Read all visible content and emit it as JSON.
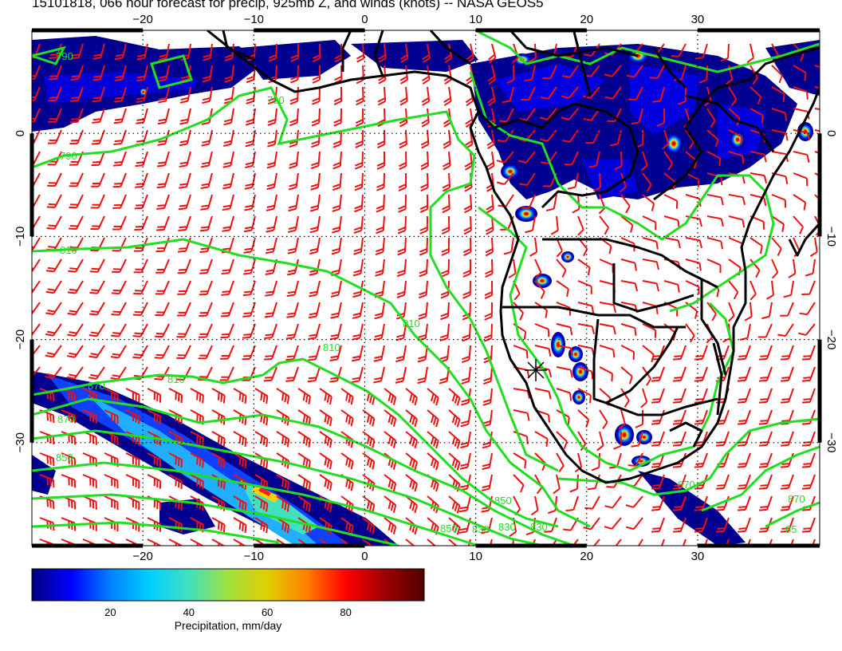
{
  "title": "15101818, 066 hour forecast for precip, 925mb Z, and winds (knots) -- NASA GEOS5",
  "map": {
    "lon_range": [
      -30,
      41
    ],
    "lat_range": [
      -40,
      10
    ],
    "lon_ticks": [
      -20,
      -10,
      0,
      10,
      20,
      30
    ],
    "lat_ticks": [
      0,
      -10,
      -20,
      -30
    ],
    "lon_tick_labels": [
      "−20",
      "−10",
      "0",
      "10",
      "20",
      "30"
    ],
    "lat_tick_labels": [
      "0",
      "−10",
      "−20",
      "−30"
    ],
    "contour_labels": [
      "790",
      "790",
      "790",
      "810",
      "810",
      "810",
      "810",
      "870",
      "870",
      "850",
      "850",
      "850",
      "830",
      "830",
      "830",
      "870",
      "870",
      "85"
    ],
    "colors": {
      "contour": "#22dd22",
      "barb": "#ee1111",
      "coast": "#000000",
      "grid": "#000000"
    }
  },
  "colorbar": {
    "label": "Precipitation, mm/day",
    "ticks": [
      20,
      40,
      60,
      80
    ],
    "range": [
      0,
      100
    ],
    "colors": [
      "#000080",
      "#0000ff",
      "#0080ff",
      "#00d0ff",
      "#40e0c0",
      "#a0e040",
      "#e0d000",
      "#ff8000",
      "#ff0000",
      "#a00000",
      "#500000"
    ]
  },
  "symbols": {
    "station_marker": "cross-marker"
  }
}
